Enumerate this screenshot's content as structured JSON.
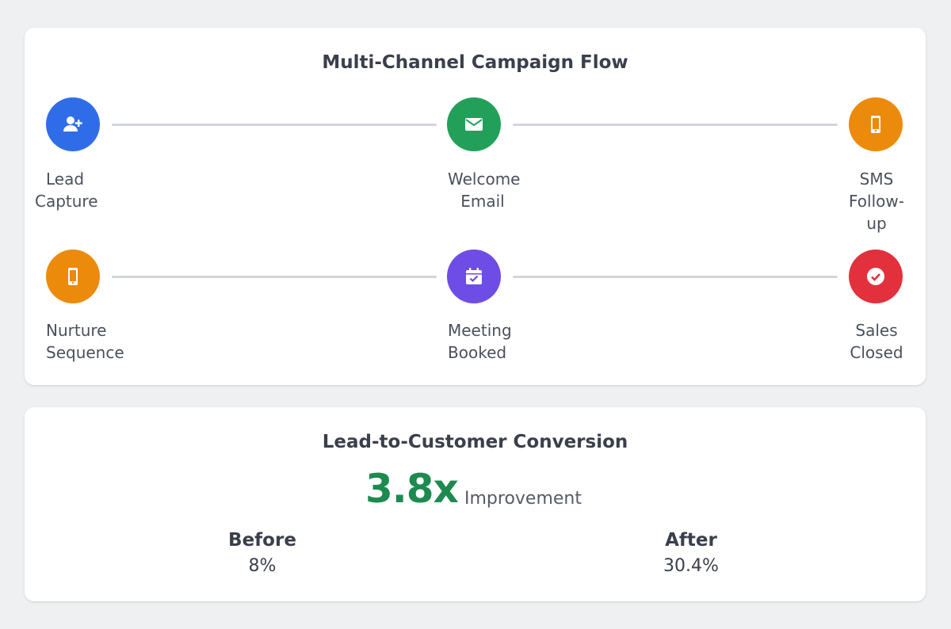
{
  "flow": {
    "title": "Multi-Channel Campaign Flow",
    "steps": [
      {
        "label_lines": [
          "Lead",
          "Capture"
        ],
        "icon": "user-plus-icon",
        "color": "#2f6de8"
      },
      {
        "label_lines": [
          "Welcome",
          "Email"
        ],
        "icon": "envelope-icon",
        "color": "#22a05a"
      },
      {
        "label_lines": [
          "SMS",
          "Follow-",
          "up"
        ],
        "icon": "mobile-phone-icon",
        "color": "#ec8a0c"
      },
      {
        "label_lines": [
          "Nurture",
          "Sequence"
        ],
        "icon": "mobile-phone-icon",
        "color": "#ec8a0c"
      },
      {
        "label_lines": [
          "Meeting",
          "Booked"
        ],
        "icon": "calendar-check-icon",
        "color": "#6d4de6"
      },
      {
        "label_lines": [
          "Sales",
          "Closed"
        ],
        "icon": "check-circle-icon",
        "color": "#e2313c"
      }
    ]
  },
  "conversion": {
    "title": "Lead-to-Customer Conversion",
    "multiplier": "3.8x",
    "multiplier_label": "Improvement",
    "accent_color": "#1d8a4f",
    "before": {
      "label": "Before",
      "value": "8%"
    },
    "after": {
      "label": "After",
      "value": "30.4%"
    }
  }
}
